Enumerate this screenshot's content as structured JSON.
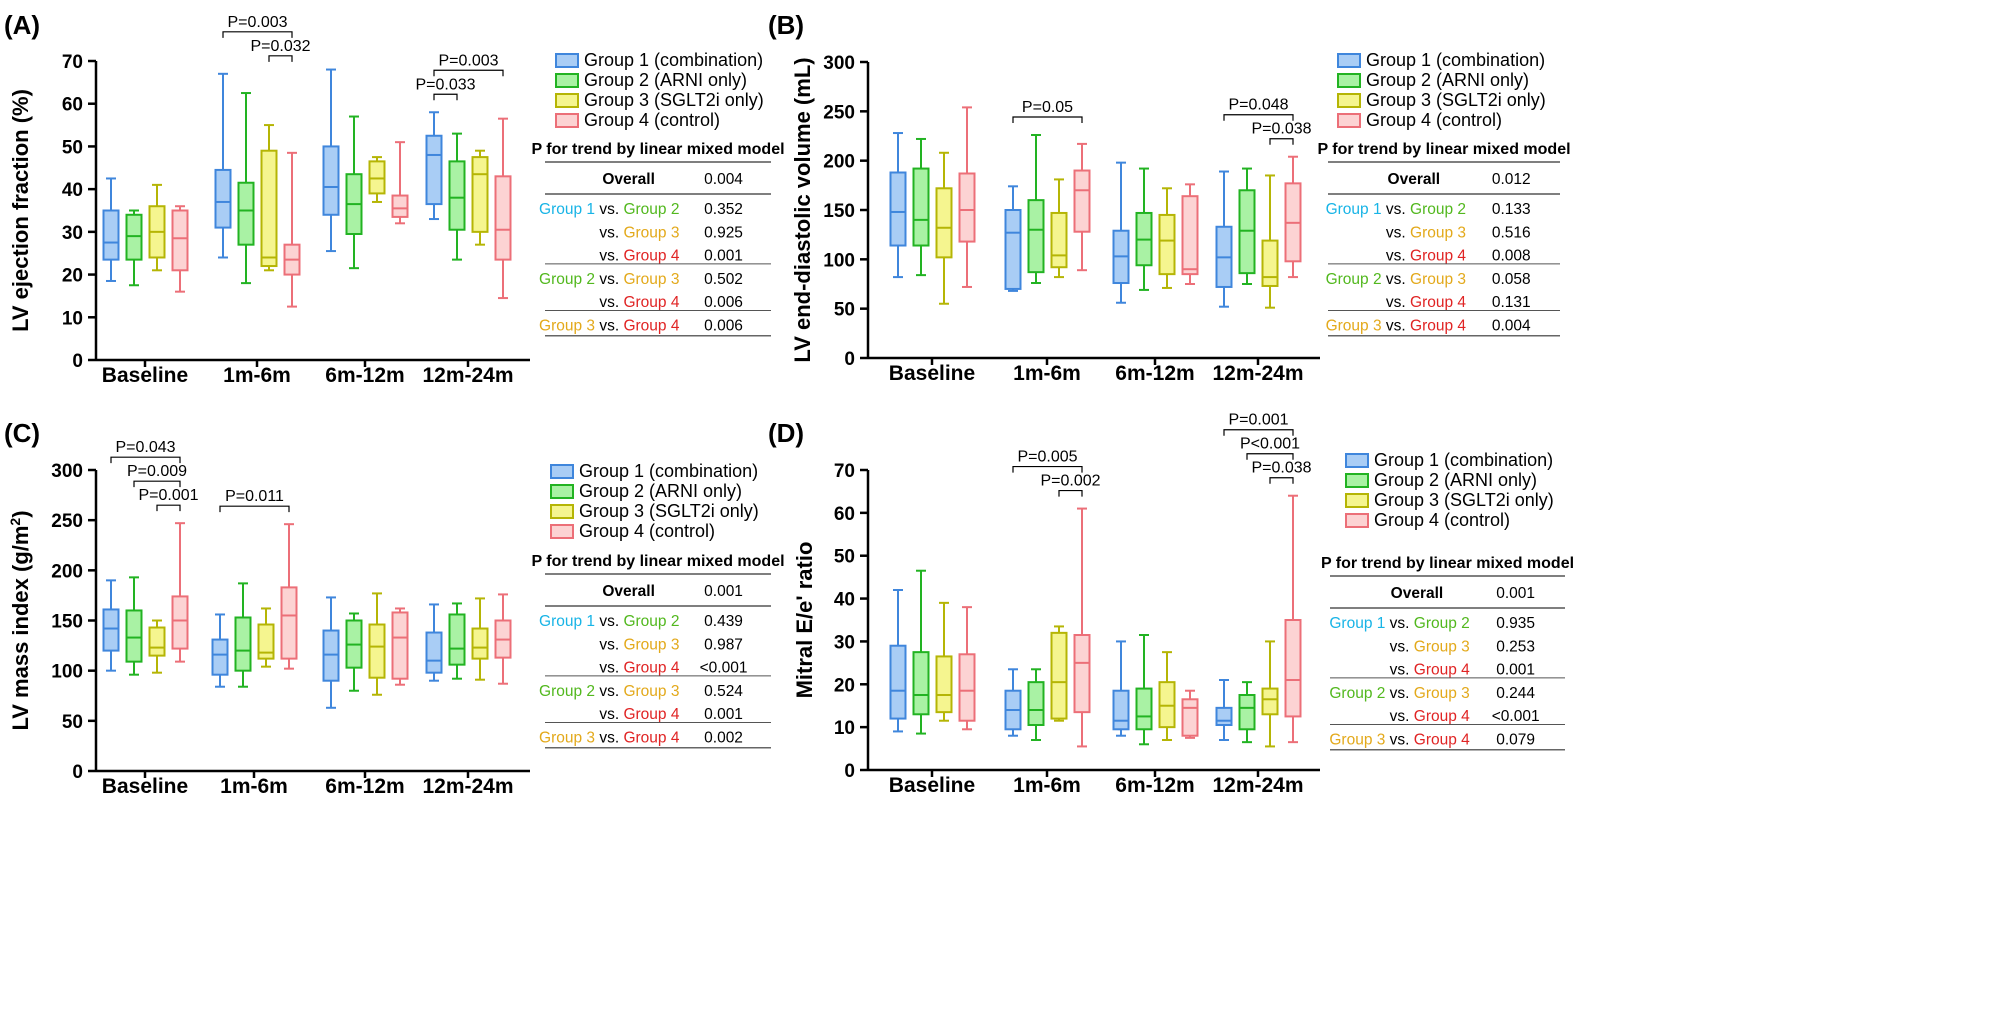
{
  "figure": {
    "groups": [
      {
        "name": "Group 1 (combination)",
        "short": "Group 1",
        "fill": "#a9cdf5",
        "stroke": "#3f86dc",
        "text_color": "#18b4e6"
      },
      {
        "name": "Group 2 (ARNI only)",
        "short": "Group 2",
        "fill": "#a9f2a4",
        "stroke": "#22b322",
        "text_color": "#52b81e"
      },
      {
        "name": "Group 3 (SGLT2i only)",
        "short": "Group 3",
        "fill": "#f5f58f",
        "stroke": "#b5b505",
        "text_color": "#e3a91b"
      },
      {
        "name": "Group 4 (control)",
        "short": "Group 4",
        "fill": "#fcd3d3",
        "stroke": "#ec6f78",
        "text_color": "#e02424"
      }
    ],
    "vs_label": "vs.",
    "table_title": "P for trend by linear mixed model",
    "overall_label": "Overall"
  },
  "chart_data": [
    {
      "panel": "(A)",
      "type": "box",
      "ylabel": "LV ejection fraction (%)",
      "ylim": [
        0,
        70
      ],
      "yticks": [
        0,
        10,
        20,
        30,
        40,
        50,
        60,
        70
      ],
      "categories": [
        "Baseline",
        "1m-6m",
        "6m-12m",
        "12m-24m"
      ],
      "boxes": [
        [
          [
            18.5,
            23.5,
            27.5,
            35,
            42.5
          ],
          [
            17.5,
            23.5,
            29,
            34,
            35
          ],
          [
            21,
            24,
            30,
            36,
            41
          ],
          [
            16,
            21,
            28.5,
            35,
            36
          ]
        ],
        [
          [
            24,
            31,
            37,
            44.5,
            67
          ],
          [
            18,
            27,
            35,
            41.5,
            62.5
          ],
          [
            21,
            22,
            24,
            49,
            55
          ],
          [
            12.5,
            20,
            23.5,
            27,
            48.5
          ]
        ],
        [
          [
            25.5,
            34,
            40.5,
            50,
            68
          ],
          [
            21.5,
            29.5,
            36.5,
            43.5,
            57
          ],
          [
            37,
            39,
            42.5,
            46.5,
            47.5
          ],
          [
            32,
            33.5,
            35.5,
            38.5,
            51
          ]
        ],
        [
          [
            33,
            36.5,
            48,
            52.5,
            58
          ],
          [
            23.5,
            30.5,
            38,
            46.5,
            53
          ],
          [
            27,
            30,
            43.5,
            47.5,
            49
          ],
          [
            14.5,
            23.5,
            30.5,
            43,
            56.5
          ]
        ]
      ],
      "sig": [
        {
          "cat": 1,
          "g1": 0,
          "g2": 3,
          "level": 0,
          "label": "P=0.003"
        },
        {
          "cat": 1,
          "g1": 2,
          "g2": 3,
          "level": 1,
          "label": "P=0.032"
        },
        {
          "cat": 3,
          "g1": 0,
          "g2": 3,
          "level": 0,
          "label": "P=0.003"
        },
        {
          "cat": 3,
          "g1": 0,
          "g2": 1,
          "level": 1,
          "label": "P=0.033"
        }
      ],
      "table": {
        "overall": "0.004",
        "rows": [
          {
            "a": 0,
            "b": 1,
            "p": "0.352"
          },
          {
            "a": null,
            "b": 2,
            "p": "0.925"
          },
          {
            "a": null,
            "b": 3,
            "p": "0.001"
          },
          {
            "a": 1,
            "b": 2,
            "p": "0.502"
          },
          {
            "a": null,
            "b": 3,
            "p": "0.006"
          },
          {
            "a": 2,
            "b": 3,
            "p": "0.006"
          }
        ]
      }
    },
    {
      "panel": "(B)",
      "type": "box",
      "ylabel": "LV end-diastolic volume (mL)",
      "ylim": [
        0,
        300
      ],
      "yticks": [
        0,
        50,
        100,
        150,
        200,
        250,
        300
      ],
      "categories": [
        "Baseline",
        "1m-6m",
        "6m-12m",
        "12m-24m"
      ],
      "boxes": [
        [
          [
            82,
            114,
            148,
            188,
            228
          ],
          [
            84,
            114,
            140,
            192,
            222
          ],
          [
            55,
            102,
            132,
            172,
            208
          ],
          [
            72,
            118,
            150,
            187,
            254
          ]
        ],
        [
          [
            68,
            70,
            127,
            150,
            174
          ],
          [
            76,
            87,
            130,
            160,
            226
          ],
          [
            82,
            92,
            104,
            147,
            181
          ],
          [
            89,
            128,
            170,
            190,
            217
          ]
        ],
        [
          [
            56,
            76,
            103,
            129,
            198
          ],
          [
            69,
            94,
            120,
            147,
            192
          ],
          [
            71,
            85,
            119,
            145,
            172
          ],
          [
            75,
            85,
            90,
            164,
            176
          ]
        ],
        [
          [
            52,
            72,
            102,
            133,
            189
          ],
          [
            75,
            86,
            129,
            170,
            192
          ],
          [
            51,
            73,
            82,
            119,
            185
          ],
          [
            82,
            98,
            137,
            177,
            204
          ]
        ]
      ],
      "sig": [
        {
          "cat": 1,
          "g1": 0,
          "g2": 3,
          "level": 0,
          "label": "P=0.05"
        },
        {
          "cat": 3,
          "g1": 0,
          "g2": 3,
          "level": 0,
          "label": "P=0.048"
        },
        {
          "cat": 3,
          "g1": 2,
          "g2": 3,
          "level": 1,
          "label": "P=0.038"
        }
      ],
      "table": {
        "overall": "0.012",
        "rows": [
          {
            "a": 0,
            "b": 1,
            "p": "0.133"
          },
          {
            "a": null,
            "b": 2,
            "p": "0.516"
          },
          {
            "a": null,
            "b": 3,
            "p": "0.008"
          },
          {
            "a": 1,
            "b": 2,
            "p": "0.058"
          },
          {
            "a": null,
            "b": 3,
            "p": "0.131"
          },
          {
            "a": 2,
            "b": 3,
            "p": "0.004"
          }
        ]
      }
    },
    {
      "panel": "(C)",
      "type": "box",
      "ylabel": "LV mass index (g/m2)",
      "ylabel_main": "LV mass index (g/m",
      "ylabel_sup": "2",
      "ylabel_end": ")",
      "ylim": [
        0,
        300
      ],
      "yticks": [
        0,
        50,
        100,
        150,
        200,
        250,
        300
      ],
      "categories": [
        "Baseline",
        "1m-6m",
        "6m-12m",
        "12m-24m"
      ],
      "boxes": [
        [
          [
            100,
            120,
            142,
            161,
            190
          ],
          [
            96,
            109,
            133,
            160,
            193
          ],
          [
            98,
            115,
            123,
            143,
            150
          ],
          [
            109,
            122,
            150,
            174,
            247
          ]
        ],
        [
          [
            84,
            96,
            116,
            131,
            156
          ],
          [
            84,
            100,
            120,
            153,
            187
          ],
          [
            104,
            112,
            118,
            146,
            162
          ],
          [
            102,
            112,
            155,
            183,
            246
          ]
        ],
        [
          [
            63,
            90,
            116,
            140,
            173
          ],
          [
            80,
            103,
            126,
            150,
            157
          ],
          [
            76,
            93,
            124,
            146,
            177
          ],
          [
            86,
            92,
            133,
            158,
            162
          ]
        ],
        [
          [
            90,
            98,
            110,
            138,
            166
          ],
          [
            92,
            106,
            122,
            156,
            167
          ],
          [
            91,
            112,
            123,
            142,
            172
          ],
          [
            87,
            113,
            131,
            150,
            176
          ]
        ]
      ],
      "sig": [
        {
          "cat": 0,
          "g1": 0,
          "g2": 3,
          "level": 0,
          "label": "P=0.043"
        },
        {
          "cat": 0,
          "g1": 1,
          "g2": 3,
          "level": 1,
          "label": "P=0.009"
        },
        {
          "cat": 0,
          "g1": 2,
          "g2": 3,
          "level": 2,
          "label": "P=0.001"
        },
        {
          "cat": 1,
          "g1": 0,
          "g2": 3,
          "level": 0,
          "label": "P=0.011"
        }
      ],
      "table": {
        "overall": "0.001",
        "rows": [
          {
            "a": 0,
            "b": 1,
            "p": "0.439"
          },
          {
            "a": null,
            "b": 2,
            "p": "0.987"
          },
          {
            "a": null,
            "b": 3,
            "p": "<0.001"
          },
          {
            "a": 1,
            "b": 2,
            "p": "0.524"
          },
          {
            "a": null,
            "b": 3,
            "p": "0.001"
          },
          {
            "a": 2,
            "b": 3,
            "p": "0.002"
          }
        ]
      }
    },
    {
      "panel": "(D)",
      "type": "box",
      "ylabel": "Mitral E/e' ratio",
      "ylim": [
        0,
        70
      ],
      "yticks": [
        0,
        10,
        20,
        30,
        40,
        50,
        60,
        70
      ],
      "categories": [
        "Baseline",
        "1m-6m",
        "6m-12m",
        "12m-24m"
      ],
      "boxes": [
        [
          [
            9,
            12,
            18.5,
            29,
            42
          ],
          [
            8.5,
            13,
            17.5,
            27.5,
            46.5
          ],
          [
            11.5,
            13.5,
            17.5,
            26.5,
            39
          ],
          [
            9.5,
            11.5,
            18.5,
            27,
            38
          ]
        ],
        [
          [
            8,
            9.5,
            14,
            18.5,
            23.5
          ],
          [
            7,
            10.5,
            14,
            20.5,
            23.5
          ],
          [
            11.5,
            12,
            20.5,
            32,
            33.5
          ],
          [
            5.5,
            13.5,
            25,
            31.5,
            61
          ]
        ],
        [
          [
            8,
            9.5,
            11.5,
            18.5,
            30
          ],
          [
            6,
            9.5,
            12.5,
            19,
            31.5
          ],
          [
            7,
            10,
            15,
            20.5,
            27.5
          ],
          [
            7.5,
            8,
            14.5,
            16.5,
            18.5
          ]
        ],
        [
          [
            7,
            10.5,
            11.5,
            14.5,
            21
          ],
          [
            6.5,
            9.5,
            14.5,
            17.5,
            20.5
          ],
          [
            5.5,
            13,
            16.5,
            19,
            30
          ],
          [
            6.5,
            12.5,
            21,
            35,
            64
          ]
        ]
      ],
      "sig": [
        {
          "cat": 1,
          "g1": 0,
          "g2": 3,
          "level": 0,
          "label": "P=0.005"
        },
        {
          "cat": 1,
          "g1": 2,
          "g2": 3,
          "level": 1,
          "label": "P=0.002"
        },
        {
          "cat": 3,
          "g1": 0,
          "g2": 3,
          "level": 0,
          "label": "P=0.001"
        },
        {
          "cat": 3,
          "g1": 1,
          "g2": 3,
          "level": 1,
          "label": "P<0.001"
        },
        {
          "cat": 3,
          "g1": 2,
          "g2": 3,
          "level": 2,
          "label": "P=0.038"
        }
      ],
      "table": {
        "overall": "0.001",
        "rows": [
          {
            "a": 0,
            "b": 1,
            "p": "0.935"
          },
          {
            "a": null,
            "b": 2,
            "p": "0.253"
          },
          {
            "a": null,
            "b": 3,
            "p": "0.001"
          },
          {
            "a": 1,
            "b": 2,
            "p": "0.244"
          },
          {
            "a": null,
            "b": 3,
            "p": "<0.001"
          },
          {
            "a": 2,
            "b": 3,
            "p": "0.079"
          }
        ]
      }
    }
  ]
}
